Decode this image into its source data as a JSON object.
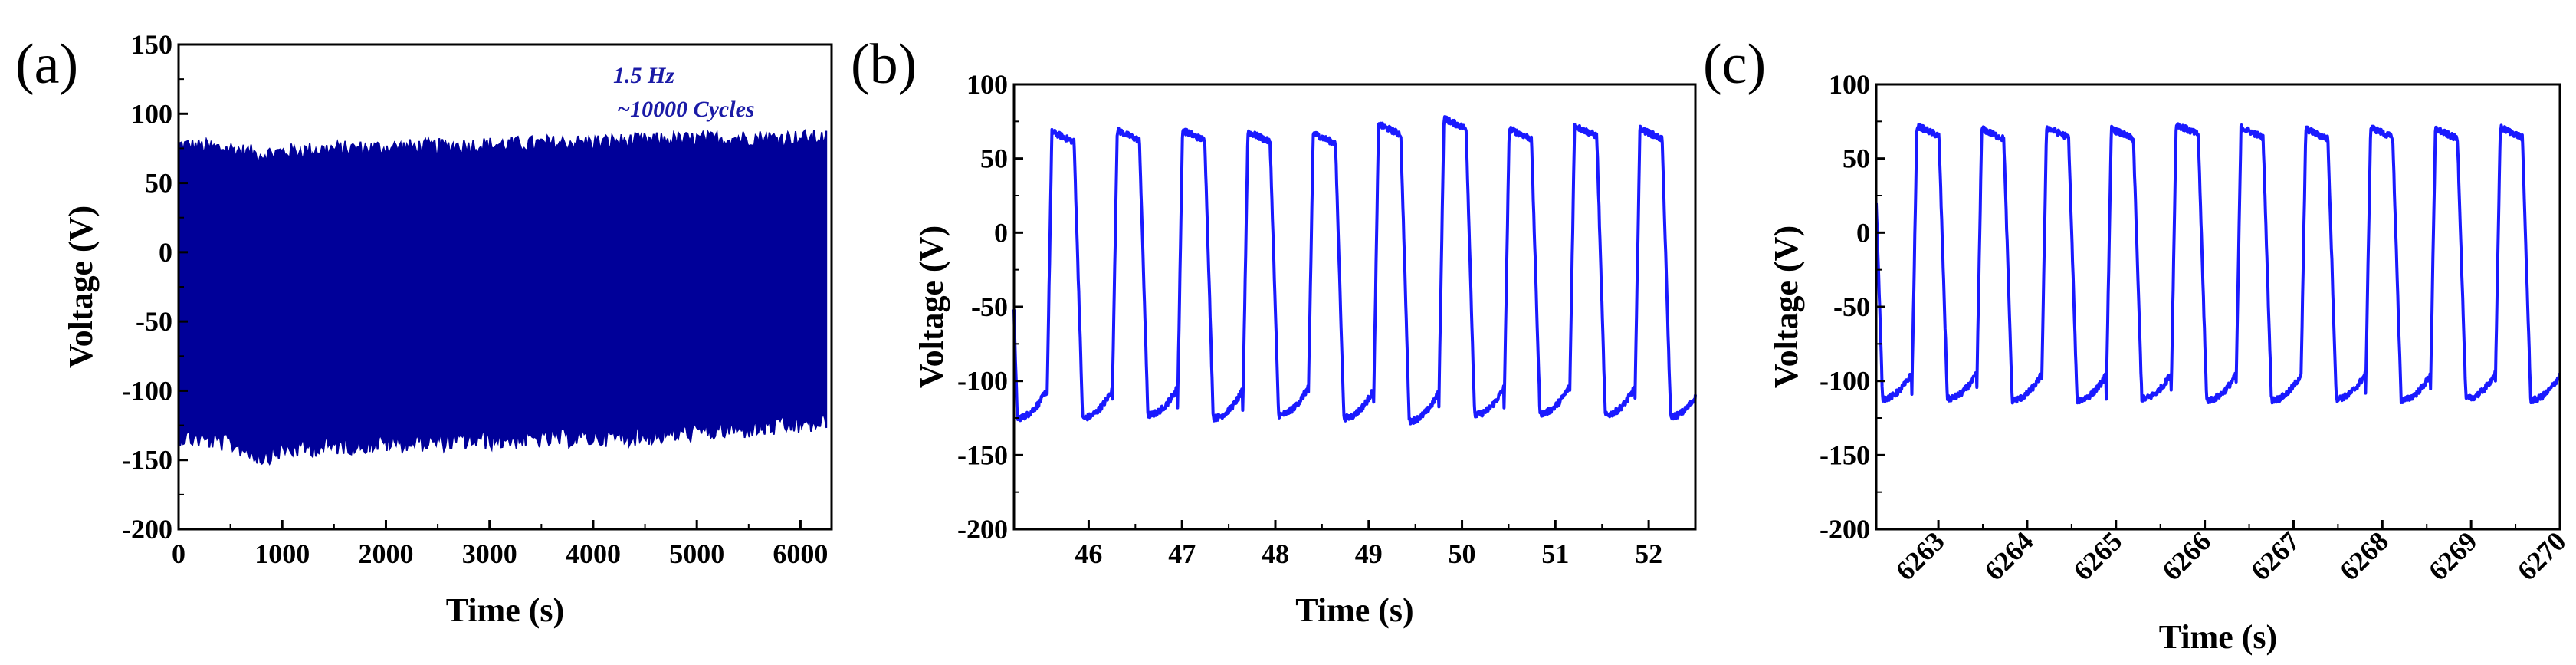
{
  "colors": {
    "signal_dense": "#000099",
    "signal_zoom": "#1a1aff",
    "annotation": "#1a1aa6",
    "axis": "#000000"
  },
  "chart_data": [
    {
      "type": "line",
      "panel_label": "(a)",
      "xlabel": "Time (s)",
      "ylabel": "Voltage (V)",
      "xlim": [
        0,
        6300
      ],
      "ylim": [
        -200,
        150
      ],
      "xticks": [
        "0",
        "1000",
        "2000",
        "3000",
        "4000",
        "5000",
        "6000"
      ],
      "yticks": [
        "150",
        "100",
        "50",
        "0",
        "-50",
        "-100",
        "-150",
        "-200"
      ],
      "annotations": [
        "1.5 Hz",
        "~10000 Cycles"
      ],
      "series": [
        {
          "envelope_x": [
            0,
            500,
            800,
            1000,
            1500,
            2000,
            2500,
            3000,
            3500,
            4000,
            4500,
            5000,
            5500,
            6000,
            6250
          ],
          "upper": [
            75,
            72,
            68,
            70,
            72,
            73,
            74,
            75,
            76,
            77,
            78,
            79,
            80,
            80,
            80
          ],
          "lower": [
            -130,
            -135,
            -145,
            -140,
            -137,
            -135,
            -134,
            -133,
            -132,
            -131,
            -130,
            -127,
            -125,
            -122,
            -120
          ]
        }
      ]
    },
    {
      "type": "line",
      "panel_label": "(b)",
      "xlabel": "Time (s)",
      "ylabel": "Voltage (V)",
      "xlim": [
        45.2,
        52.5
      ],
      "ylim": [
        -200,
        100
      ],
      "xticks": [
        "46",
        "47",
        "48",
        "49",
        "50",
        "51",
        "52"
      ],
      "yticks": [
        "100",
        "50",
        "0",
        "-50",
        "-100",
        "-150",
        "-200"
      ],
      "series": [
        {
          "pulse_start_x": [
            45.55,
            46.25,
            46.95,
            47.65,
            48.35,
            49.05,
            49.75,
            50.45,
            51.15,
            51.85
          ],
          "peak_values": [
            68,
            69,
            69,
            68,
            67,
            73,
            77,
            70,
            72,
            70
          ],
          "trough_values": [
            -125,
            -123,
            -125,
            -123,
            -125,
            -127,
            -123,
            -122,
            -123,
            -124
          ]
        }
      ]
    },
    {
      "type": "line",
      "panel_label": "(c)",
      "xlabel": "Time (s)",
      "ylabel": "Voltage (V)",
      "xlim": [
        6262.3,
        6270
      ],
      "ylim": [
        -200,
        100
      ],
      "xticks": [
        "6263",
        "6264",
        "6265",
        "6266",
        "6267",
        "6268",
        "6269",
        "6270"
      ],
      "yticks": [
        "100",
        "50",
        "0",
        "-50",
        "-100",
        "-150",
        "-200"
      ],
      "series": [
        {
          "pulse_start_x": [
            6262.7,
            6263.43,
            6264.16,
            6264.89,
            6265.62,
            6266.35,
            6267.08,
            6267.81,
            6268.54,
            6269.27
          ],
          "peak_values": [
            72,
            70,
            71,
            70,
            73,
            71,
            70,
            71,
            70,
            71
          ],
          "trough_values": [
            -112,
            -113,
            -113,
            -112,
            -113,
            -113,
            -112,
            -113,
            -112,
            -113
          ]
        }
      ]
    }
  ]
}
